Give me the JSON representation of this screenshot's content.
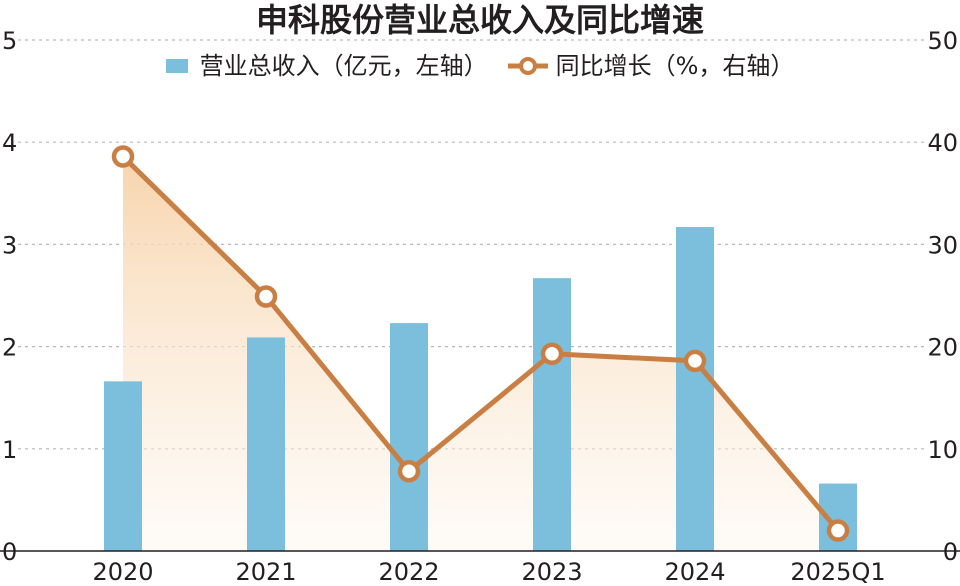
{
  "title": "申科股份营业总收入及同比增速",
  "legend": {
    "bar_label": "营业总收入（亿元，左轴）",
    "line_label": "同比增长（%，右轴）"
  },
  "colors": {
    "bar": "#7bbfdc",
    "line": "#c97f44",
    "area_top": "#f7d7b4",
    "grid": "#b7b7b7"
  },
  "chart_data": {
    "type": "bar",
    "categories": [
      "2020",
      "2021",
      "2022",
      "2023",
      "2024",
      "2025Q1"
    ],
    "series": [
      {
        "name": "营业总收入（亿元，左轴）",
        "type": "bar",
        "axis": "left",
        "values": [
          1.66,
          2.09,
          2.23,
          2.67,
          3.17,
          0.66
        ]
      },
      {
        "name": "同比增长（%，右轴）",
        "type": "line",
        "axis": "right",
        "values": [
          38.6,
          24.9,
          7.8,
          19.3,
          18.6,
          2.0
        ]
      }
    ],
    "y_left": {
      "range": [
        0,
        5
      ],
      "ticks": [
        "0",
        "1",
        "2",
        "3",
        "4",
        "5"
      ]
    },
    "y_right": {
      "range": [
        0,
        50
      ],
      "ticks": [
        "0",
        "10",
        "20",
        "30",
        "40",
        "50"
      ]
    },
    "grid": true,
    "legend_position": "top"
  }
}
